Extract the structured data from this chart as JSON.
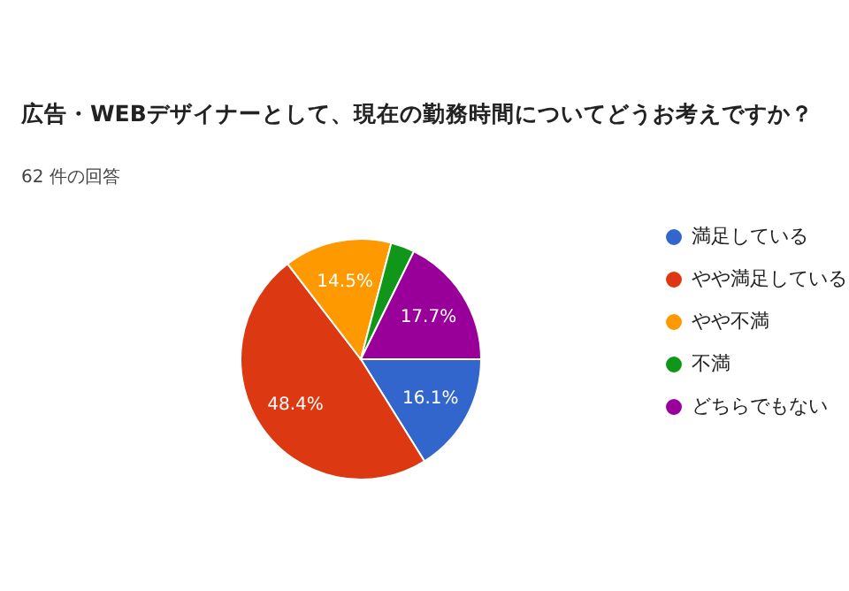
{
  "chart_data": {
    "type": "pie",
    "title": "広告・WEBデザイナーとして、現在の勤務時間についてどうお考えですか？",
    "subtitle": "62 件の回答",
    "categories": [
      "満足している",
      "やや満足している",
      "やや不満",
      "不満",
      "どちらでもない"
    ],
    "values": [
      16.1,
      48.4,
      14.5,
      3.2,
      17.7
    ],
    "colors": [
      "#3366cc",
      "#dc3912",
      "#ff9900",
      "#109618",
      "#990099"
    ],
    "value_labels": [
      "16.1%",
      "48.4%",
      "14.5%",
      null,
      "17.7%"
    ],
    "legend": "right"
  }
}
